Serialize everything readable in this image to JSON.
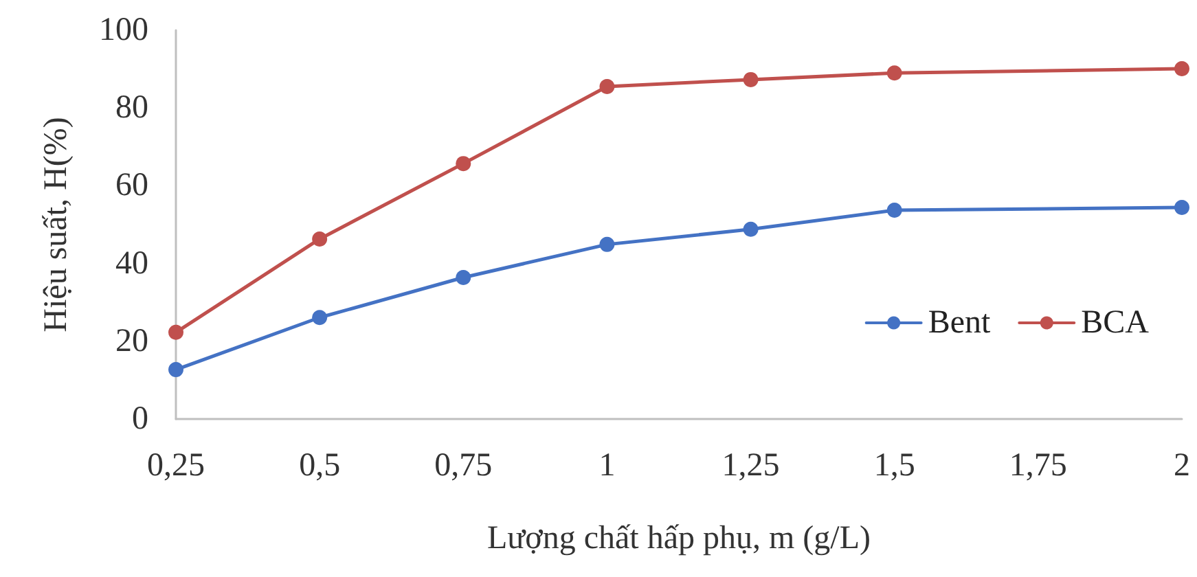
{
  "chart_data": {
    "type": "line",
    "xlabel": "Lượng chất hấp phụ, m (g/L)",
    "ylabel": "Hiệu suất, H(%)",
    "x": [
      0.25,
      0.5,
      0.75,
      1,
      1.25,
      1.5,
      2
    ],
    "series": [
      {
        "name": "Bent",
        "color": "#4472c4",
        "values": [
          12.7,
          26.1,
          36.4,
          44.9,
          48.8,
          53.7,
          54.4
        ]
      },
      {
        "name": "BCA",
        "color": "#c0504d",
        "values": [
          22.3,
          46.3,
          65.7,
          85.5,
          87.3,
          89.0,
          90.1
        ]
      }
    ],
    "xlim": [
      0.25,
      2
    ],
    "xticks": [
      {
        "value": 0.25,
        "label": "0,25"
      },
      {
        "value": 0.5,
        "label": "0,5"
      },
      {
        "value": 0.75,
        "label": "0,75"
      },
      1,
      {
        "value": 1.25,
        "label": "1,25"
      },
      {
        "value": 1.5,
        "label": "1,5"
      },
      {
        "value": 1.75,
        "label": "1,75"
      },
      2
    ],
    "ylim": [
      0,
      100
    ],
    "yticks": [
      0,
      20,
      40,
      60,
      80,
      100
    ],
    "grid": false,
    "legend": "right",
    "marker": "circle",
    "line_style": "solid"
  }
}
